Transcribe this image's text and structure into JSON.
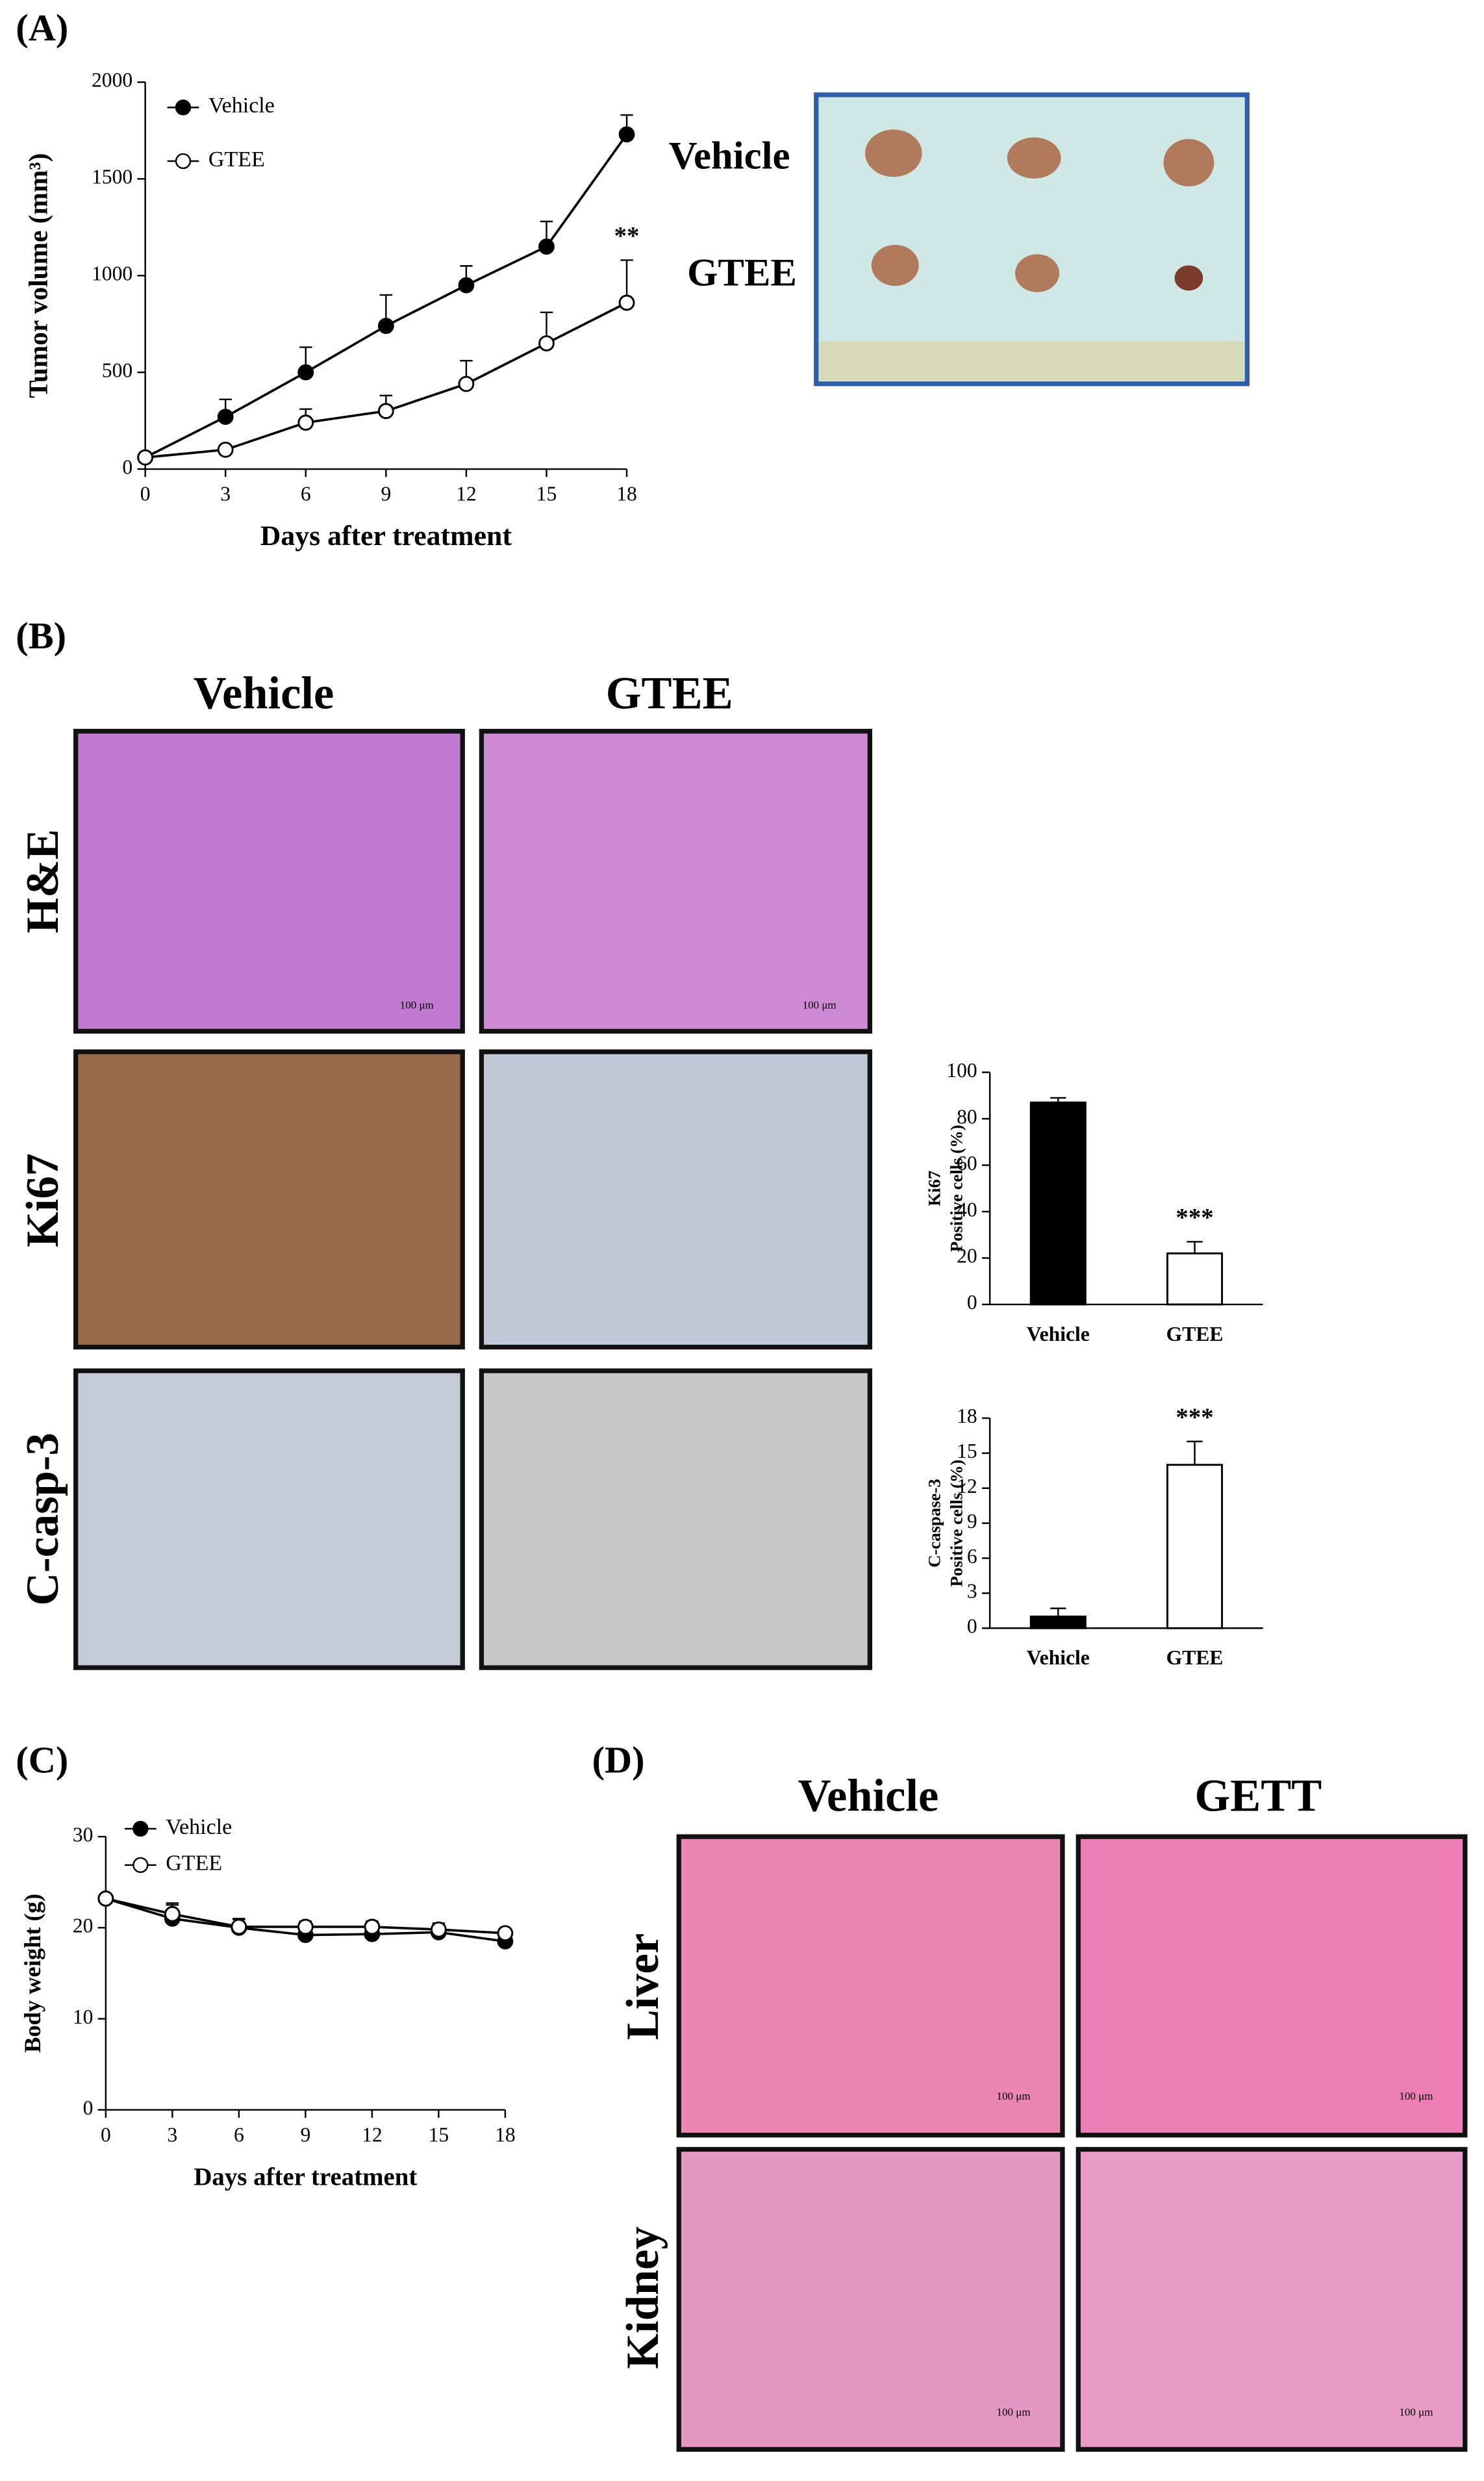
{
  "figure": {
    "panels": [
      "(A)",
      "(B)",
      "(C)",
      "(D)"
    ],
    "tumor_photo_rows": [
      "Vehicle",
      "GTEE"
    ],
    "ihc_columns": [
      "Vehicle",
      "GTEE"
    ],
    "ihc_rows": [
      "H&E",
      "Ki67",
      "C-casp-3"
    ],
    "organ_columns": [
      "Vehicle",
      "GETT"
    ],
    "organ_rows": [
      "Liver",
      "Kidney"
    ],
    "scale_bar": "100 μm"
  },
  "chart_data": [
    {
      "type": "line",
      "xlabel": "Days after treatment",
      "ylabel": "Tumor volume (mm³)",
      "x": [
        0,
        3,
        6,
        9,
        12,
        15,
        18
      ],
      "xlim": [
        0,
        18
      ],
      "xticks": [
        0,
        3,
        6,
        9,
        12,
        15,
        18
      ],
      "ylim": [
        0,
        2000
      ],
      "yticks": [
        0,
        500,
        1000,
        1500,
        2000
      ],
      "series": [
        {
          "name": "Vehicle",
          "color": "#000000",
          "values": [
            60,
            270,
            500,
            740,
            950,
            1150,
            1730
          ],
          "errors": [
            10,
            90,
            130,
            160,
            100,
            130,
            100
          ]
        },
        {
          "name": "GTEE",
          "color": "#ffffff",
          "values": [
            60,
            100,
            240,
            300,
            440,
            650,
            860
          ],
          "errors": [
            10,
            20,
            70,
            80,
            120,
            160,
            220
          ]
        }
      ],
      "annotation": "**"
    },
    {
      "type": "bar",
      "ylabel": [
        "Ki67",
        "Positive cells (%)"
      ],
      "categories": [
        "Vehicle",
        "GTEE"
      ],
      "values": [
        87,
        22
      ],
      "errors": [
        2,
        5
      ],
      "colors": [
        "#000000",
        "#ffffff"
      ],
      "ylim": [
        0,
        100
      ],
      "yticks": [
        0,
        20,
        40,
        60,
        80,
        100
      ],
      "annotation": "***"
    },
    {
      "type": "bar",
      "ylabel": [
        "C-caspase-3",
        "Positive cells (%)"
      ],
      "categories": [
        "Vehicle",
        "GTEE"
      ],
      "values": [
        1,
        14
      ],
      "errors": [
        0.7,
        2
      ],
      "colors": [
        "#000000",
        "#ffffff"
      ],
      "ylim": [
        0,
        18
      ],
      "yticks": [
        0,
        3,
        6,
        9,
        12,
        15,
        18
      ],
      "annotation": "***"
    },
    {
      "type": "line",
      "xlabel": "Days after treatment",
      "ylabel": "Body weight (g)",
      "x": [
        0,
        3,
        6,
        9,
        12,
        15,
        18
      ],
      "xlim": [
        0,
        18
      ],
      "xticks": [
        0,
        3,
        6,
        9,
        12,
        15,
        18
      ],
      "ylim": [
        0,
        30
      ],
      "yticks": [
        0,
        10,
        20,
        30
      ],
      "series": [
        {
          "name": "Vehicle",
          "color": "#000000",
          "values": [
            23.2,
            21,
            20,
            19.2,
            19.3,
            19.5,
            18.5
          ],
          "errors": [
            0.3,
            1.5,
            1,
            0.8,
            0.7,
            0.8,
            0.5
          ]
        },
        {
          "name": "GTEE",
          "color": "#ffffff",
          "values": [
            23.2,
            21.5,
            20.1,
            20.1,
            20.1,
            19.8,
            19.4
          ],
          "errors": [
            0.3,
            1.2,
            0.8,
            0.6,
            0.6,
            0.7,
            0.5
          ]
        }
      ]
    }
  ]
}
